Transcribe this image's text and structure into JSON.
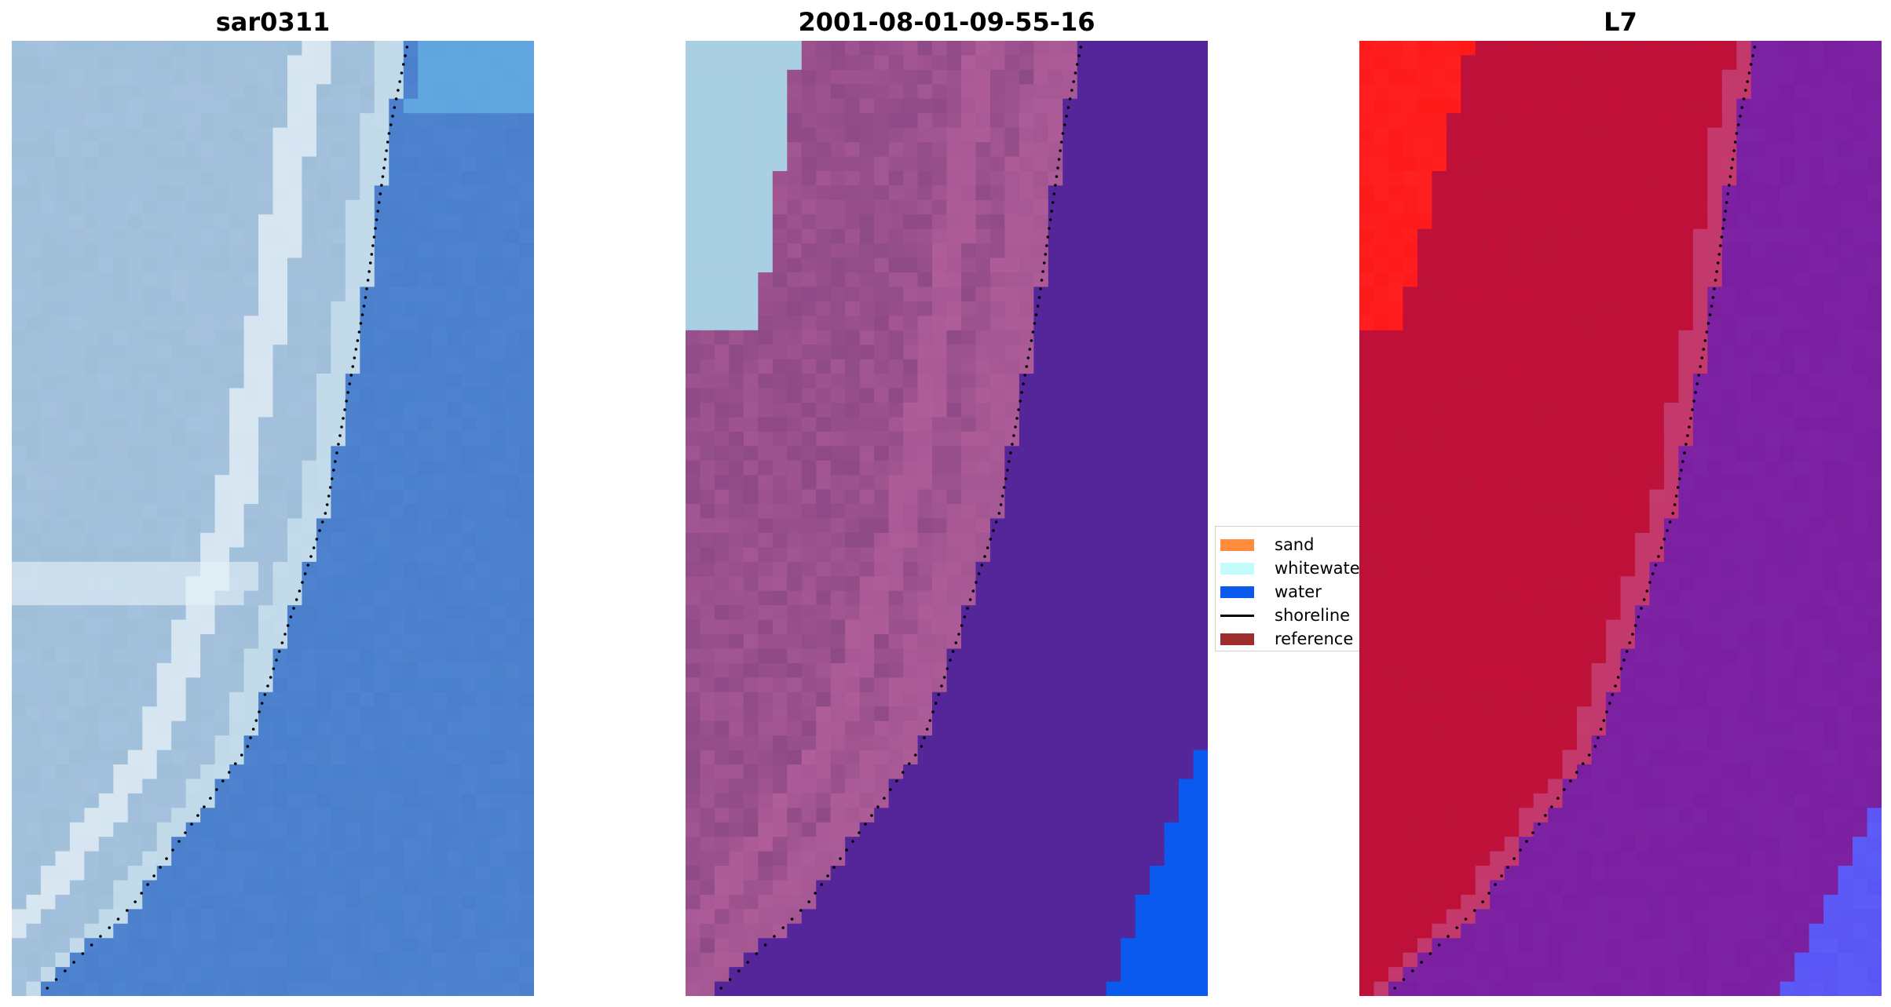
{
  "panels": [
    {
      "title": "sar0311",
      "kind": "rgb"
    },
    {
      "title": "2001-08-01-09-55-16",
      "kind": "classified"
    },
    {
      "title": "L7",
      "kind": "index"
    }
  ],
  "legend": {
    "items": [
      {
        "label": "sand",
        "color": "#ff8c3c",
        "type": "patch"
      },
      {
        "label": "whitewater",
        "color": "#c4fcfc",
        "type": "patch"
      },
      {
        "label": "water",
        "color": "#0a5af0",
        "type": "patch"
      },
      {
        "label": "shoreline",
        "color": "#000000",
        "type": "line"
      },
      {
        "label": "reference s",
        "color": "#9e2d2d",
        "type": "patch"
      }
    ]
  },
  "colors": {
    "rgb_land": "#9fbfd9",
    "rgb_white": "#e8f2f8",
    "rgb_water": "#4a7fcc",
    "class_land": "#8e4a86",
    "class_pink": "#b8629e",
    "class_white": "#a9cfe3",
    "class_water": "#55259a",
    "class_bluewater": "#0a5af0",
    "index_red_bright": "#ff1a1a",
    "index_red": "#c01038",
    "index_purple": "#7a1fa0",
    "index_blue": "#5a55f5",
    "shoreline": "#000000"
  }
}
